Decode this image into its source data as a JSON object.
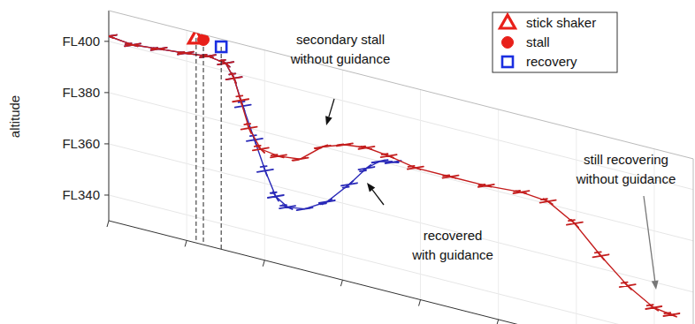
{
  "chart_data": {
    "type": "line",
    "y_label": "altitude",
    "xlim": [
      0,
      105
    ],
    "xticks": [
      0,
      14,
      28,
      42,
      56,
      70,
      84,
      98
    ],
    "ylim": [
      330,
      412
    ],
    "yticks": [
      {
        "value": 340,
        "label": "FL340"
      },
      {
        "value": 360,
        "label": "FL360"
      },
      {
        "value": 380,
        "label": "FL380"
      },
      {
        "value": 400,
        "label": "FL400"
      }
    ],
    "tick_labels": "y",
    "grid": true,
    "legend": "upper right",
    "series": [
      {
        "color": "#2a2ab8",
        "marker": "plane",
        "line_style": "solid",
        "x": [
          0,
          4.3,
          9,
          13.8,
          17.8,
          21,
          22.5,
          24.1,
          26.2,
          28.1,
          30,
          32.1,
          35.2,
          39.2,
          43.2,
          46.3,
          48.7,
          51.1
        ],
        "values": [
          402,
          401,
          402,
          403,
          404,
          403,
          398,
          388,
          376,
          365,
          356,
          353,
          354,
          359,
          368,
          376,
          380,
          381
        ]
      },
      {
        "color": "#c41e1e",
        "marker": "plane",
        "line_style": "solid",
        "x": [
          0,
          4.3,
          9,
          13.8,
          17.8,
          21,
          22.5,
          23.7,
          25.2,
          27.3,
          30.5,
          34.4,
          38.4,
          42.4,
          46.3,
          50.3,
          55.1,
          61.4,
          67.8,
          74.1,
          78.9,
          83.7,
          88.4,
          93.2,
          97.9,
          101.1
        ],
        "values": [
          402,
          401,
          402,
          403,
          404,
          403,
          398,
          390,
          380,
          373,
          372,
          373,
          380,
          383,
          384,
          383,
          381,
          381,
          381,
          382,
          381,
          375,
          365,
          356,
          350,
          349
        ]
      },
      {
        "name": "stick shaker",
        "type": "scatter",
        "marker": "triangle",
        "color": "#e8201a",
        "x": [
          15.7
        ],
        "values": [
          410
        ]
      },
      {
        "name": "stall",
        "type": "scatter",
        "marker": "circle",
        "color": "#e8201a",
        "x": [
          17
        ],
        "values": [
          410
        ]
      },
      {
        "name": "recovery",
        "type": "scatter",
        "marker": "square",
        "color": "#1a2ee0",
        "x": [
          20.2
        ],
        "values": [
          409
        ]
      }
    ],
    "annotations": [
      {
        "lines": [
          "secondary stall",
          "without guidance"
        ]
      },
      {
        "lines": [
          "recovered",
          "with guidance"
        ]
      },
      {
        "lines": [
          "still recovering",
          "without guidance"
        ]
      }
    ]
  }
}
